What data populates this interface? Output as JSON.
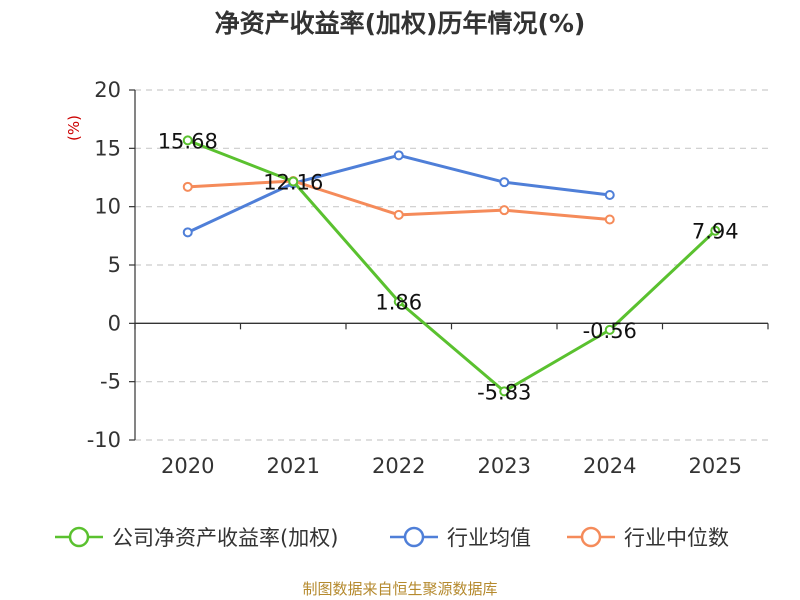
{
  "chart_data": {
    "type": "line",
    "title": "净资产收益率(加权)历年情况(%)",
    "ylabel": "(%)",
    "xlabel": "",
    "categories": [
      "2020",
      "2021",
      "2022",
      "2023",
      "2024",
      "2025"
    ],
    "ylim": [
      -10,
      20
    ],
    "yticks": [
      -10,
      -5,
      0,
      5,
      10,
      15,
      20
    ],
    "grid": true,
    "legend_position": "bottom",
    "series": [
      {
        "name": "公司净资产收益率(加权)",
        "color": "#5ac12f",
        "values": [
          15.68,
          12.16,
          1.86,
          -5.83,
          -0.56,
          7.94
        ],
        "labels": [
          "15.68",
          "12.16",
          "1.86",
          "-5.83",
          "-0.56",
          "7.94"
        ]
      },
      {
        "name": "行业均值",
        "color": "#4f7fd8",
        "values": [
          7.8,
          12.0,
          14.4,
          12.1,
          11.0,
          null
        ]
      },
      {
        "name": "行业中位数",
        "color": "#f58b5a",
        "values": [
          11.7,
          12.2,
          9.3,
          9.7,
          8.9,
          null
        ]
      }
    ],
    "source": "制图数据来自恒生聚源数据库"
  }
}
